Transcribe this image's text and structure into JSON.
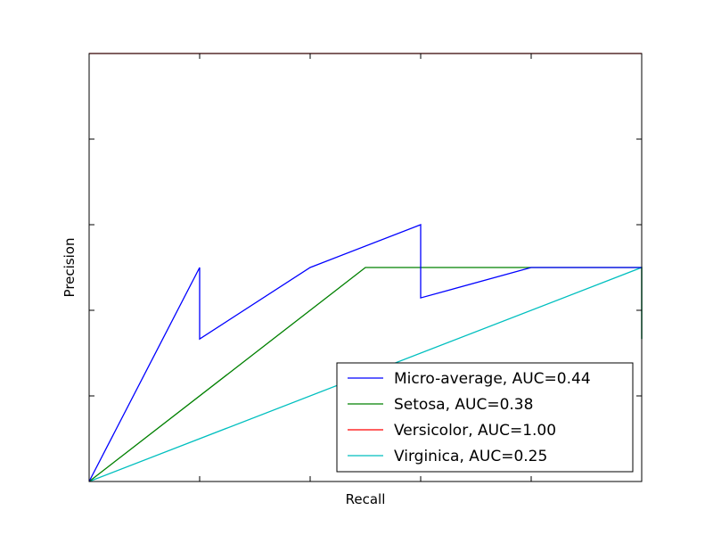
{
  "chart_data": {
    "type": "line",
    "title": "",
    "xlabel": "Recall",
    "ylabel": "Precision",
    "xlim": [
      0,
      1
    ],
    "ylim": [
      0,
      1
    ],
    "ticks": "unlabeled",
    "grid": false,
    "legend_position": "bottom-right",
    "series": [
      {
        "name": "Micro-average, AUC=0.44",
        "color": "#0000ff",
        "points": [
          [
            0,
            0
          ],
          [
            0.2,
            0.5
          ],
          [
            0.2,
            0.333
          ],
          [
            0.4,
            0.5
          ],
          [
            0.6,
            0.6
          ],
          [
            0.6,
            0.429
          ],
          [
            0.8,
            0.5
          ],
          [
            1.0,
            0.5
          ]
        ]
      },
      {
        "name": "Setosa, AUC=0.38",
        "color": "#008000",
        "points": [
          [
            0,
            0
          ],
          [
            0.5,
            0.5
          ],
          [
            1.0,
            0.5
          ],
          [
            1.0,
            0.333
          ]
        ]
      },
      {
        "name": "Versicolor, AUC=1.00",
        "color": "#ff0000",
        "points": [
          [
            0,
            1.0
          ],
          [
            1.0,
            1.0
          ]
        ]
      },
      {
        "name": "Virginica, AUC=0.25",
        "color": "#00bfbf",
        "points": [
          [
            0,
            0
          ],
          [
            1.0,
            0.5
          ],
          [
            1.0,
            0.333
          ]
        ]
      }
    ]
  }
}
